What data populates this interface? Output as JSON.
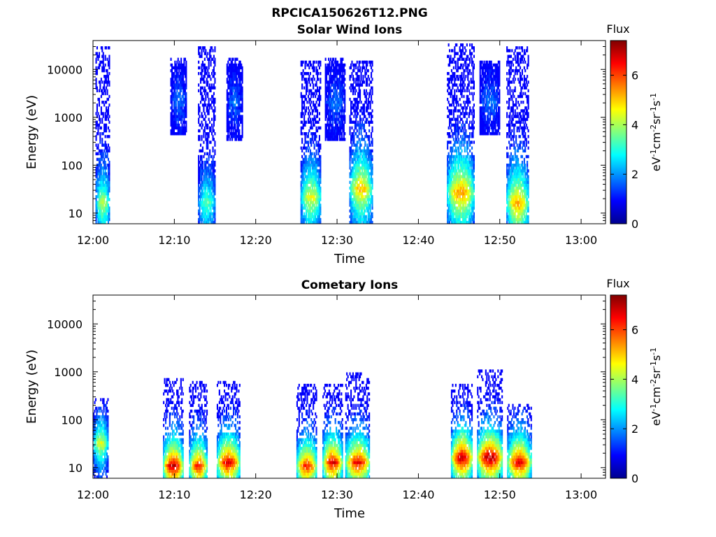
{
  "figure_title": "RPCICA150626T12.PNG",
  "colorbar": {
    "label": "Flux",
    "unit_main": "eV",
    "unit_parts": [
      "eV",
      "-1",
      "cm",
      "-2",
      "sr",
      "-1",
      "s",
      "-1"
    ],
    "range": [
      0,
      7.4
    ],
    "ticks": [
      "0",
      "2",
      "4",
      "6"
    ],
    "colormap": "jet"
  },
  "chart_data": [
    {
      "type": "heatmap",
      "title": "Solar Wind Ions",
      "xlabel": "Time",
      "ylabel": "Energy (eV)",
      "yscale": "log",
      "ylim": [
        6,
        40000
      ],
      "xlim": [
        "12:00",
        "13:03"
      ],
      "x_ticks": [
        "12:00",
        "12:10",
        "12:20",
        "12:30",
        "12:40",
        "12:50",
        "13:00"
      ],
      "y_ticks": [
        "10",
        "100",
        "1000",
        "10000"
      ],
      "bursts": [
        {
          "t_start": "12:00.3",
          "t_end": "12:02.0",
          "e_low": 6,
          "e_high": 28000,
          "peak_energy": 15,
          "peak_flux": 4.2
        },
        {
          "t_start": "12:09.5",
          "t_end": "12:11.5",
          "e_low": 400,
          "e_high": 17000,
          "peak_energy": 2000,
          "peak_flux": 1.8
        },
        {
          "t_start": "12:12.9",
          "t_end": "12:15.0",
          "e_low": 6,
          "e_high": 28000,
          "peak_energy": 15,
          "peak_flux": 3.5
        },
        {
          "t_start": "12:16.4",
          "t_end": "12:18.3",
          "e_low": 300,
          "e_high": 17000,
          "peak_energy": 2000,
          "peak_flux": 1.8
        },
        {
          "t_start": "12:25.5",
          "t_end": "12:28.0",
          "e_low": 6,
          "e_high": 14000,
          "peak_energy": 20,
          "peak_flux": 4.6
        },
        {
          "t_start": "12:28.5",
          "t_end": "12:31.0",
          "e_low": 300,
          "e_high": 17000,
          "peak_energy": 2000,
          "peak_flux": 1.8
        },
        {
          "t_start": "12:31.5",
          "t_end": "12:34.3",
          "e_low": 6,
          "e_high": 14000,
          "peak_energy": 30,
          "peak_flux": 5.2
        },
        {
          "t_start": "12:43.5",
          "t_end": "12:46.8",
          "e_low": 6,
          "e_high": 32000,
          "peak_energy": 25,
          "peak_flux": 5.6
        },
        {
          "t_start": "12:47.5",
          "t_end": "12:50.0",
          "e_low": 400,
          "e_high": 14000,
          "peak_energy": 2000,
          "peak_flux": 1.8
        },
        {
          "t_start": "12:50.8",
          "t_end": "12:53.5",
          "e_low": 6,
          "e_high": 28000,
          "peak_energy": 15,
          "peak_flux": 5.4
        }
      ]
    },
    {
      "type": "heatmap",
      "title": "Cometary Ions",
      "xlabel": "Time",
      "ylabel": "Energy (eV)",
      "yscale": "log",
      "ylim": [
        6,
        40000
      ],
      "xlim": [
        "12:00",
        "13:03"
      ],
      "x_ticks": [
        "12:00",
        "12:10",
        "12:20",
        "12:30",
        "12:40",
        "12:50",
        "13:00"
      ],
      "y_ticks": [
        "10",
        "100",
        "1000",
        "10000"
      ],
      "bursts": [
        {
          "t_start": "12:00.0",
          "t_end": "12:01.8",
          "e_low": 6,
          "e_high": 280,
          "peak_energy": 30,
          "peak_flux": 4.6
        },
        {
          "t_start": "12:08.6",
          "t_end": "12:11.0",
          "e_low": 6,
          "e_high": 700,
          "peak_energy": 10,
          "peak_flux": 7.2
        },
        {
          "t_start": "12:11.8",
          "t_end": "12:14.0",
          "e_low": 6,
          "e_high": 600,
          "peak_energy": 10,
          "peak_flux": 6.4
        },
        {
          "t_start": "12:15.2",
          "t_end": "12:18.0",
          "e_low": 6,
          "e_high": 600,
          "peak_energy": 12,
          "peak_flux": 6.8
        },
        {
          "t_start": "12:25.0",
          "t_end": "12:27.5",
          "e_low": 6,
          "e_high": 500,
          "peak_energy": 10,
          "peak_flux": 6.4
        },
        {
          "t_start": "12:28.2",
          "t_end": "12:30.6",
          "e_low": 6,
          "e_high": 500,
          "peak_energy": 12,
          "peak_flux": 6.8
        },
        {
          "t_start": "12:31.0",
          "t_end": "12:34.0",
          "e_low": 6,
          "e_high": 900,
          "peak_energy": 12,
          "peak_flux": 6.6
        },
        {
          "t_start": "12:44.0",
          "t_end": "12:46.6",
          "e_low": 6,
          "e_high": 500,
          "peak_energy": 15,
          "peak_flux": 7.2
        },
        {
          "t_start": "12:47.2",
          "t_end": "12:50.3",
          "e_low": 6,
          "e_high": 1100,
          "peak_energy": 15,
          "peak_flux": 7.4
        },
        {
          "t_start": "12:50.9",
          "t_end": "12:53.8",
          "e_low": 6,
          "e_high": 200,
          "peak_energy": 12,
          "peak_flux": 6.8
        }
      ]
    }
  ]
}
